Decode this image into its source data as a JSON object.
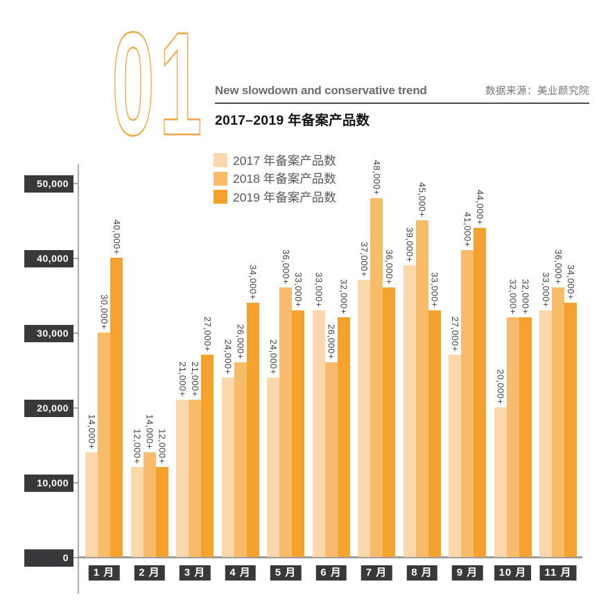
{
  "header": {
    "section_number": "01",
    "subtitle_en": "New slowdown and conservative trend",
    "data_source": "数据来源：美业颜究院",
    "title": "2017–2019 年备案产品数"
  },
  "legend": [
    {
      "label": "2017 年备案产品数",
      "color": "#FAD8AC"
    },
    {
      "label": "2018 年备案产品数",
      "color": "#F8BB6A"
    },
    {
      "label": "2019 年备案产品数",
      "color": "#F5A12E"
    }
  ],
  "colors": {
    "accent_outline": "#F2A444",
    "axis_gray": "#A8A8A8",
    "tick_box_dark": "#39383A",
    "label_text": "#414043"
  },
  "chart_data": {
    "type": "bar",
    "title": "2017–2019 年备案产品数",
    "xlabel": "",
    "ylabel": "",
    "ylim": [
      0,
      50000
    ],
    "grid": false,
    "legend_position": "top-center",
    "categories": [
      "1 月",
      "2 月",
      "3 月",
      "4 月",
      "5 月",
      "6 月",
      "7 月",
      "8 月",
      "9 月",
      "10 月",
      "11 月"
    ],
    "y_axis": {
      "ticks": [
        {
          "label": "50,000",
          "value": 50000
        },
        {
          "label": "40,000",
          "value": 40000
        },
        {
          "label": "30,000",
          "value": 30000
        },
        {
          "label": "20,000",
          "value": 20000
        },
        {
          "label": "10,000",
          "value": 10000
        },
        {
          "label": "0",
          "value": 0
        }
      ]
    },
    "series": [
      {
        "name": "2017 年备案产品数",
        "color": "#FAD8AC",
        "values": [
          14000,
          12000,
          21000,
          24000,
          24000,
          33000,
          37000,
          39000,
          27000,
          20000,
          33000
        ],
        "labels": [
          "14,000+",
          "12,000+",
          "21,000+",
          "24,000+",
          "24,000+",
          "33,000+",
          "37,000+",
          "39,000+",
          "27,000+",
          "20,000+",
          "33,000+"
        ]
      },
      {
        "name": "2018 年备案产品数",
        "color": "#F8BB6A",
        "values": [
          30000,
          14000,
          21000,
          26000,
          36000,
          26000,
          48000,
          45000,
          41000,
          32000,
          36000
        ],
        "labels": [
          "30,000+",
          "14,000+",
          "21,000+",
          "26,000+",
          "36,000+",
          "26,000+",
          "48,000+",
          "45,000+",
          "41,000+",
          "32,000+",
          "36,000+"
        ]
      },
      {
        "name": "2019 年备案产品数",
        "color": "#F5A12E",
        "values": [
          40000,
          12000,
          27000,
          34000,
          33000,
          32000,
          36000,
          33000,
          44000,
          32000,
          34000
        ],
        "labels": [
          "40,000+",
          "12,000+",
          "27,000+",
          "34,000+",
          "33,000+",
          "32,000+",
          "36,000+",
          "33,000+",
          "44,000+",
          "32,000+",
          "34,000+"
        ]
      }
    ]
  }
}
